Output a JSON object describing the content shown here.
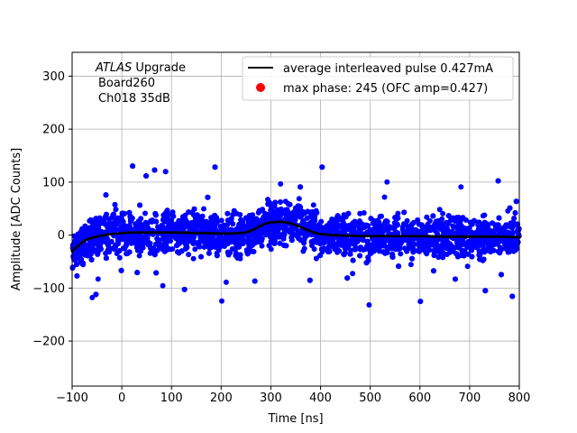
{
  "chart_data": {
    "type": "scatter",
    "title": "",
    "xlabel": "Time [ns]",
    "ylabel": "Amplitude [ADC Counts]",
    "xlim": [
      -100,
      800
    ],
    "ylim": [
      -285,
      345
    ],
    "xticks": [
      -100,
      0,
      100,
      200,
      300,
      400,
      500,
      600,
      700,
      800
    ],
    "yticks": [
      -200,
      -100,
      0,
      100,
      200,
      300
    ],
    "ytick_labels": [
      "−200",
      "−100",
      "0",
      "100",
      "200",
      "300"
    ],
    "grid": true,
    "annotation": {
      "italic": "ATLAS",
      "rest": " Upgrade",
      "line2": "Board260",
      "line3": "Ch018 35dB"
    },
    "legend": {
      "position": "top-right",
      "entries": [
        {
          "label": "average interleaved pulse 0.427mA",
          "marker": "line",
          "color": "#000000"
        },
        {
          "label": "max phase: 245 (OFC amp=0.427)",
          "marker": "dot",
          "color": "#ff0000"
        }
      ]
    },
    "series": [
      {
        "name": "samples",
        "kind": "scatter",
        "color": "#0000ff",
        "description_values": "noise band approx ±45 ADC around average pulse, outliers to ±135"
      },
      {
        "name": "average interleaved pulse 0.427mA",
        "kind": "line",
        "color": "#000000",
        "x": [
          -100,
          -90,
          -80,
          -70,
          -60,
          -50,
          -40,
          -30,
          -20,
          -10,
          0,
          25,
          50,
          75,
          100,
          150,
          200,
          225,
          250,
          260,
          270,
          280,
          290,
          300,
          310,
          320,
          330,
          340,
          350,
          360,
          370,
          380,
          390,
          400,
          420,
          450,
          500,
          550,
          600,
          650,
          700,
          750,
          800
        ],
        "y": [
          -30,
          -22,
          -14,
          -8,
          -5,
          -3,
          -1,
          1,
          2,
          3,
          4,
          5,
          5,
          5,
          5,
          4,
          3,
          3,
          5,
          8,
          13,
          18,
          22,
          24,
          25,
          25,
          24,
          22,
          19,
          15,
          11,
          7,
          4,
          2,
          0,
          -1,
          -2,
          -2,
          -2,
          -3,
          -3,
          -3,
          -4
        ]
      }
    ]
  }
}
